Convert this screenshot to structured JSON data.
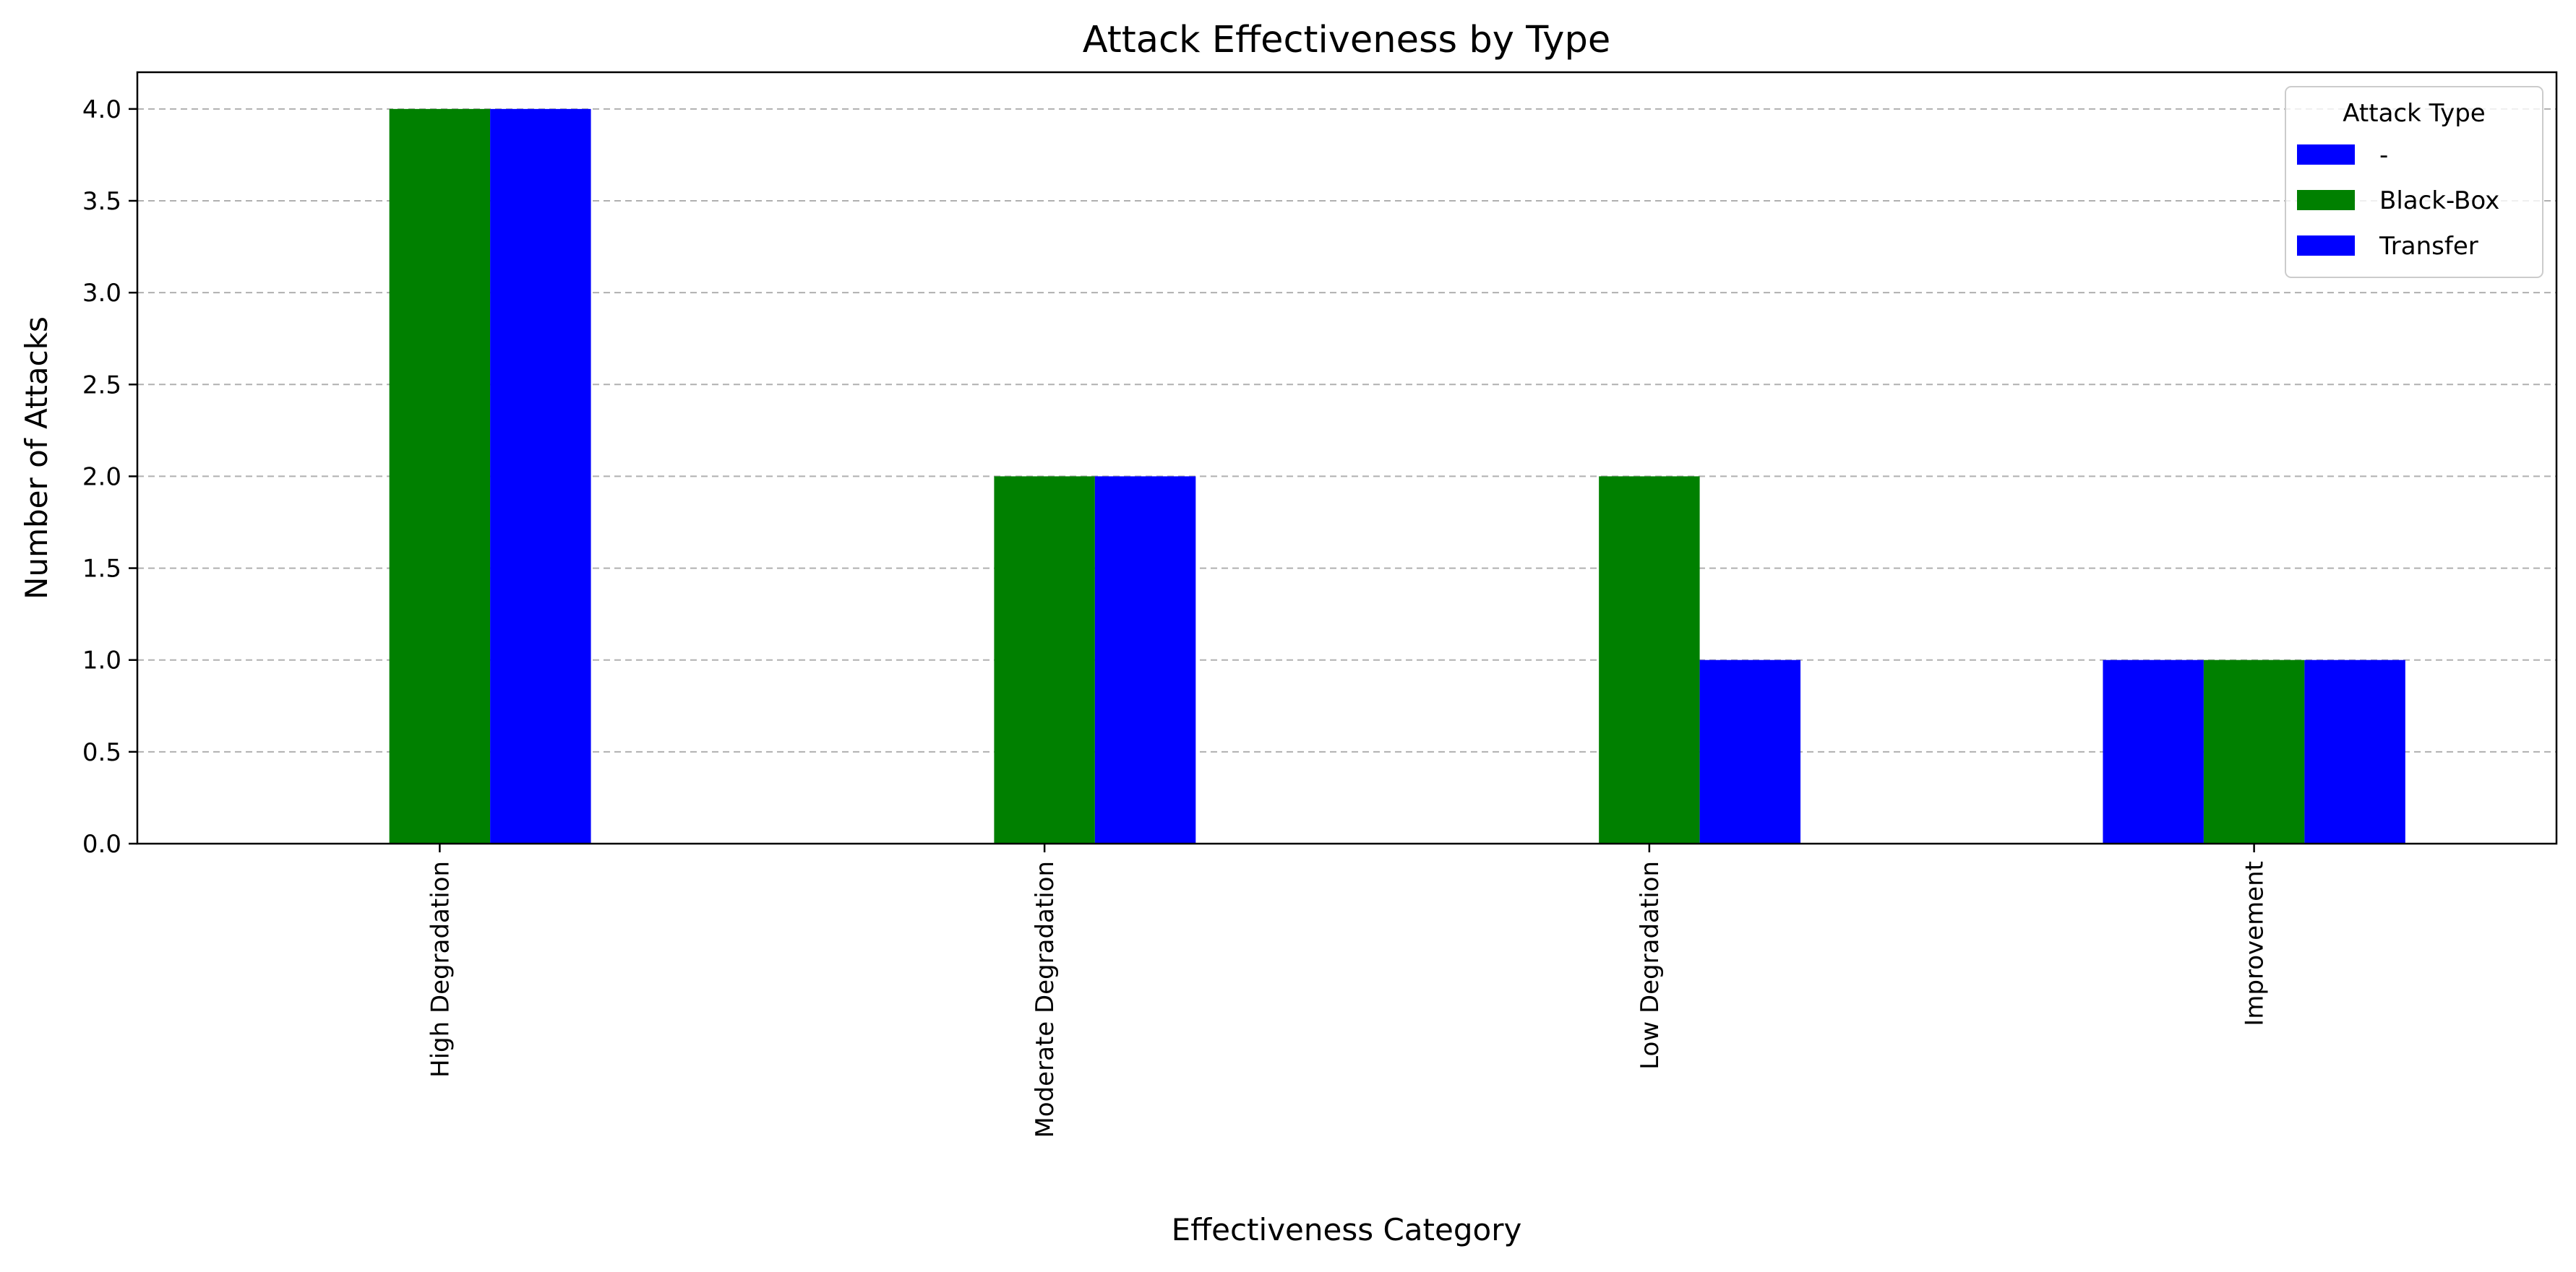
{
  "chart_data": {
    "type": "bar",
    "title": "Attack Effectiveness by Type",
    "xlabel": "Effectiveness Category",
    "ylabel": "Number of Attacks",
    "categories": [
      "High Degradation",
      "Moderate Degradation",
      "Low Degradation",
      "Improvement"
    ],
    "series": [
      {
        "name": "-",
        "values": [
          0,
          0,
          0,
          1
        ],
        "color": "#0000ff"
      },
      {
        "name": "Black-Box",
        "values": [
          4,
          2,
          2,
          1
        ],
        "color": "#008000"
      },
      {
        "name": "Transfer",
        "values": [
          4,
          2,
          1,
          1
        ],
        "color": "#0000ff"
      }
    ],
    "ylim": [
      0,
      4.2
    ],
    "yticks": [
      "0.0",
      "0.5",
      "1.0",
      "1.5",
      "2.0",
      "2.5",
      "3.0",
      "3.5",
      "4.0"
    ],
    "ytick_values": [
      0,
      0.5,
      1.0,
      1.5,
      2.0,
      2.5,
      3.0,
      3.5,
      4.0
    ],
    "grid": "y, dashed",
    "legend": {
      "title": "Attack Type",
      "placement": "top-right"
    },
    "xtick_rotation": "vertical"
  }
}
